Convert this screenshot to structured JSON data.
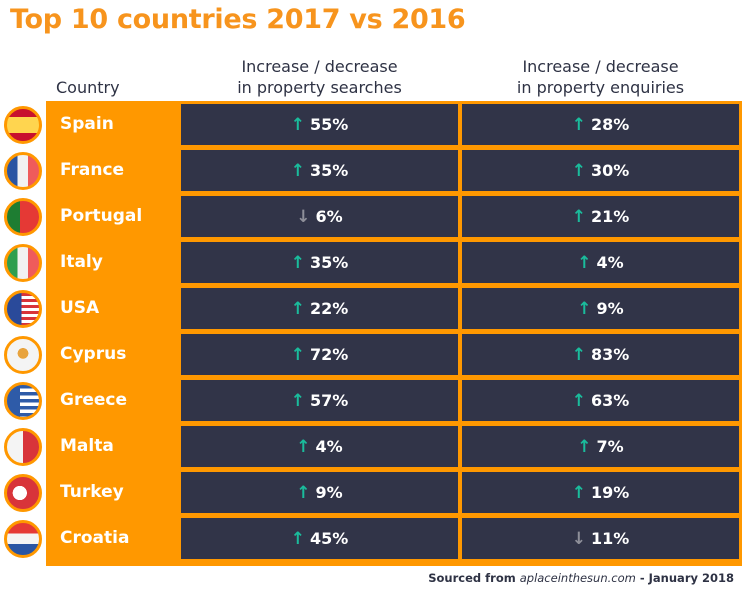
{
  "title": "Top 10 countries 2017 vs 2016",
  "headers": {
    "country": "Country",
    "searches_line1": "Increase / decrease",
    "searches_line2": "in property searches",
    "enquiries_line1": "Increase / decrease",
    "enquiries_line2": "in property enquiries"
  },
  "colors": {
    "accent": "#ff9800",
    "cell_bg": "#313448",
    "up": "#1abc9c",
    "down": "#8e8f99"
  },
  "chart_data": {
    "type": "table",
    "title": "Top 10 countries 2017 vs 2016",
    "columns": [
      "Country",
      "Increase / decrease in property searches",
      "Increase / decrease in property enquiries"
    ],
    "rows": [
      {
        "country": "Spain",
        "flag": "spain-flag",
        "searches": {
          "dir": "up",
          "value": "55%"
        },
        "enquiries": {
          "dir": "up",
          "value": "28%"
        }
      },
      {
        "country": "France",
        "flag": "france-flag",
        "searches": {
          "dir": "up",
          "value": "35%"
        },
        "enquiries": {
          "dir": "up",
          "value": "30%"
        }
      },
      {
        "country": "Portugal",
        "flag": "portugal-flag",
        "searches": {
          "dir": "down",
          "value": "6%"
        },
        "enquiries": {
          "dir": "up",
          "value": "21%"
        }
      },
      {
        "country": "Italy",
        "flag": "italy-flag",
        "searches": {
          "dir": "up",
          "value": "35%"
        },
        "enquiries": {
          "dir": "up",
          "value": "4%"
        }
      },
      {
        "country": "USA",
        "flag": "usa-flag",
        "searches": {
          "dir": "up",
          "value": "22%"
        },
        "enquiries": {
          "dir": "up",
          "value": "9%"
        }
      },
      {
        "country": "Cyprus",
        "flag": "cyprus-flag",
        "searches": {
          "dir": "up",
          "value": "72%"
        },
        "enquiries": {
          "dir": "up",
          "value": "83%"
        }
      },
      {
        "country": "Greece",
        "flag": "greece-flag",
        "searches": {
          "dir": "up",
          "value": "57%"
        },
        "enquiries": {
          "dir": "up",
          "value": "63%"
        }
      },
      {
        "country": "Malta",
        "flag": "malta-flag",
        "searches": {
          "dir": "up",
          "value": "4%"
        },
        "enquiries": {
          "dir": "up",
          "value": "7%"
        }
      },
      {
        "country": "Turkey",
        "flag": "turkey-flag",
        "searches": {
          "dir": "up",
          "value": "9%"
        },
        "enquiries": {
          "dir": "up",
          "value": "19%"
        }
      },
      {
        "country": "Croatia",
        "flag": "croatia-flag",
        "searches": {
          "dir": "up",
          "value": "45%"
        },
        "enquiries": {
          "dir": "down",
          "value": "11%"
        }
      }
    ]
  },
  "source": {
    "prefix": "Sourced from ",
    "site": "aplaceinthesun.com",
    "suffix": " - January 2018"
  }
}
